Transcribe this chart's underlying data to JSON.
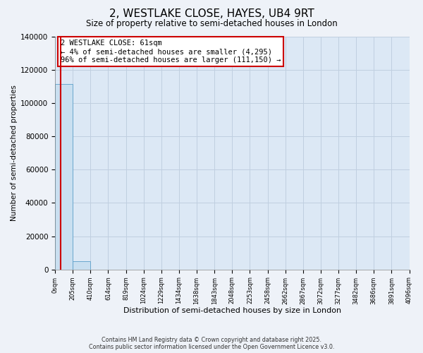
{
  "title": "2, WESTLAKE CLOSE, HAYES, UB4 9RT",
  "subtitle": "Size of property relative to semi-detached houses in London",
  "xlabel": "Distribution of semi-detached houses by size in London",
  "ylabel": "Number of semi-detached properties",
  "property_size": 61,
  "annotation_line1": "2 WESTLAKE CLOSE: 61sqm",
  "annotation_line2": "← 4% of semi-detached houses are smaller (4,295)",
  "annotation_line3": "96% of semi-detached houses are larger (111,150) →",
  "bar_edges": [
    0,
    205,
    410,
    614,
    819,
    1024,
    1229,
    1434,
    1638,
    1843,
    2048,
    2253,
    2458,
    2662,
    2867,
    3072,
    3277,
    3482,
    3686,
    3891,
    4096
  ],
  "bar_heights": [
    111445,
    4845,
    35,
    5,
    2,
    1,
    0,
    0,
    0,
    0,
    0,
    0,
    0,
    0,
    0,
    0,
    0,
    0,
    0,
    0
  ],
  "bar_color": "#c9dff0",
  "bar_edge_color": "#5a9ec9",
  "property_line_color": "#cc0000",
  "annotation_box_color": "#cc0000",
  "annotation_fill_color": "#ffffff",
  "ylim": [
    0,
    140000
  ],
  "yticks": [
    0,
    20000,
    40000,
    60000,
    80000,
    100000,
    120000,
    140000
  ],
  "ytick_labels": [
    "0",
    "20000",
    "40000",
    "60000",
    "80000",
    "100000",
    "120000",
    "140000"
  ],
  "xtick_labels": [
    "0sqm",
    "205sqm",
    "410sqm",
    "614sqm",
    "819sqm",
    "1024sqm",
    "1229sqm",
    "1434sqm",
    "1638sqm",
    "1843sqm",
    "2048sqm",
    "2253sqm",
    "2458sqm",
    "2662sqm",
    "2867sqm",
    "3072sqm",
    "3277sqm",
    "3482sqm",
    "3686sqm",
    "3891sqm",
    "4096sqm"
  ],
  "footer_line1": "Contains HM Land Registry data © Crown copyright and database right 2025.",
  "footer_line2": "Contains public sector information licensed under the Open Government Licence v3.0.",
  "background_color": "#eef2f8",
  "plot_bg_color": "#dce8f5",
  "grid_color": "#c0cfe0"
}
